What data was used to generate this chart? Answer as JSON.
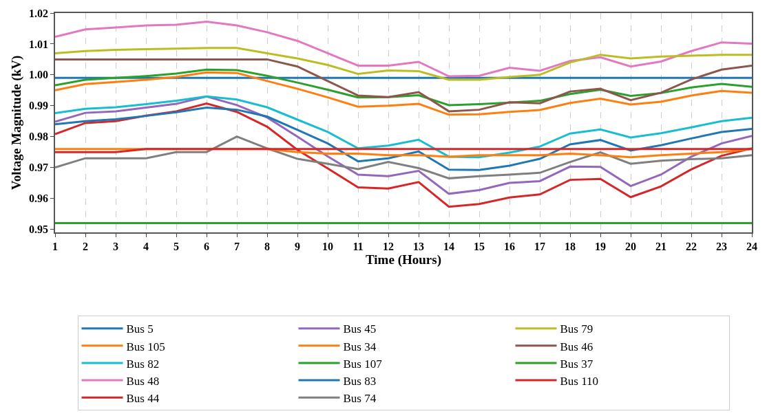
{
  "chart_data": {
    "type": "line",
    "xlabel": "Time (Hours)",
    "ylabel": "Voltage Magnitude (kV)",
    "x": [
      1,
      2,
      3,
      4,
      5,
      6,
      7,
      8,
      9,
      10,
      11,
      12,
      13,
      14,
      15,
      16,
      17,
      18,
      19,
      20,
      21,
      22,
      23,
      24
    ],
    "xlim": [
      1,
      24
    ],
    "xticks": [
      1,
      2,
      3,
      4,
      5,
      6,
      7,
      8,
      9,
      10,
      11,
      12,
      13,
      14,
      15,
      16,
      17,
      18,
      19,
      20,
      21,
      22,
      23,
      24
    ],
    "ylim": [
      0.949,
      1.02
    ],
    "yticks": [
      0.95,
      0.96,
      0.97,
      0.98,
      0.99,
      {
        "value": 1.0,
        "label": "1.00"
      },
      1.01,
      1.02
    ],
    "grid": "x",
    "legend": "bottom",
    "line_style": "solid",
    "marker": "none",
    "series": [
      {
        "name": "Bus 5",
        "color": "#1f77b4",
        "values": [
          0.999,
          0.999,
          0.999,
          0.999,
          0.999,
          0.999,
          0.999,
          0.999,
          0.999,
          0.999,
          0.999,
          0.999,
          0.999,
          0.999,
          0.999,
          0.999,
          0.999,
          0.999,
          0.999,
          0.999,
          0.999,
          0.999,
          0.999,
          0.999
        ]
      },
      {
        "name": "Bus 34",
        "color": "#ff7f0e",
        "values": [
          0.995,
          0.997,
          0.9977,
          0.9984,
          0.9993,
          1.0008,
          1.0006,
          0.998,
          0.9955,
          0.9927,
          0.9897,
          0.99,
          0.9906,
          0.9871,
          0.9872,
          0.988,
          0.9886,
          0.9909,
          0.9923,
          0.9904,
          0.9913,
          0.9933,
          0.9948,
          0.9942
        ]
      },
      {
        "name": "Bus 37",
        "color": "#2ca02c",
        "values": [
          0.9966,
          0.9984,
          0.999,
          0.9996,
          1.0004,
          1.0017,
          1.0015,
          0.9997,
          0.9975,
          0.9952,
          0.9927,
          0.9928,
          0.9934,
          0.9902,
          0.9905,
          0.991,
          0.9916,
          0.9938,
          0.9952,
          0.9932,
          0.9941,
          0.9959,
          0.9971,
          0.9961
        ]
      },
      {
        "name": "Bus 44",
        "color": "#d62728",
        "values": [
          0.9808,
          0.9844,
          0.985,
          0.9868,
          0.9882,
          0.9907,
          0.988,
          0.9832,
          0.9757,
          0.9697,
          0.9636,
          0.9632,
          0.9653,
          0.9573,
          0.9582,
          0.9603,
          0.9613,
          0.966,
          0.9663,
          0.9604,
          0.9639,
          0.9694,
          0.9738,
          0.9762
        ]
      },
      {
        "name": "Bus 45",
        "color": "#9467bd",
        "values": [
          0.9848,
          0.9877,
          0.9882,
          0.9894,
          0.9906,
          0.993,
          0.9902,
          0.9862,
          0.98,
          0.9736,
          0.9677,
          0.9672,
          0.9689,
          0.9615,
          0.9627,
          0.965,
          0.9656,
          0.9703,
          0.9702,
          0.964,
          0.9677,
          0.9735,
          0.9778,
          0.9802
        ]
      },
      {
        "name": "Bus 46",
        "color": "#8c564b",
        "values": [
          1.005,
          1.005,
          1.005,
          1.005,
          1.005,
          1.005,
          1.005,
          1.005,
          1.0027,
          0.998,
          0.9933,
          0.9928,
          0.9944,
          0.9882,
          0.9887,
          0.9911,
          0.9908,
          0.9946,
          0.9955,
          0.9918,
          0.9942,
          0.9985,
          1.0017,
          1.003
        ]
      },
      {
        "name": "Bus 48",
        "color": "#e377c2",
        "values": [
          1.0123,
          1.0147,
          1.0153,
          1.016,
          1.0162,
          1.0172,
          1.016,
          1.0138,
          1.011,
          1.007,
          1.003,
          1.003,
          1.0042,
          0.9995,
          0.9997,
          1.0023,
          1.0013,
          1.0045,
          1.0057,
          1.0027,
          1.0043,
          1.0077,
          1.0105,
          1.0101
        ]
      },
      {
        "name": "Bus 74",
        "color": "#7f7f7f",
        "values": [
          0.97,
          0.973,
          0.973,
          0.973,
          0.975,
          0.975,
          0.98,
          0.9762,
          0.9728,
          0.9712,
          0.9695,
          0.9718,
          0.9698,
          0.9665,
          0.9672,
          0.9677,
          0.9683,
          0.9718,
          0.9749,
          0.9712,
          0.9722,
          0.9727,
          0.973,
          0.974
        ]
      },
      {
        "name": "Bus 79",
        "color": "#bcbd22",
        "values": [
          1.007,
          1.0077,
          1.0081,
          1.0083,
          1.0085,
          1.0087,
          1.0087,
          1.007,
          1.0053,
          1.0032,
          1.0003,
          1.0014,
          1.0012,
          0.9984,
          0.9984,
          0.9993,
          1.0,
          1.004,
          1.0065,
          1.0053,
          1.0059,
          1.0062,
          1.0065,
          1.0065
        ]
      },
      {
        "name": "Bus 82",
        "color": "#17becf",
        "values": [
          0.9876,
          0.989,
          0.9895,
          0.9905,
          0.9916,
          0.993,
          0.992,
          0.9895,
          0.9855,
          0.9815,
          0.9762,
          0.9771,
          0.979,
          0.9735,
          0.9733,
          0.9748,
          0.9768,
          0.981,
          0.9823,
          0.9797,
          0.9811,
          0.983,
          0.985,
          0.9861
        ]
      },
      {
        "name": "Bus 83",
        "color": "#1f77b4",
        "values": [
          0.984,
          0.985,
          0.9856,
          0.9867,
          0.9879,
          0.9894,
          0.9887,
          0.9865,
          0.9822,
          0.9778,
          0.972,
          0.973,
          0.9752,
          0.9693,
          0.9692,
          0.9706,
          0.9728,
          0.9775,
          0.9789,
          0.9755,
          0.9772,
          0.9794,
          0.9815,
          0.9825
        ]
      },
      {
        "name": "Bus 105",
        "color": "#ff7f0e",
        "values": [
          0.976,
          0.976,
          0.976,
          0.976,
          0.976,
          0.976,
          0.976,
          0.976,
          0.975,
          0.9745,
          0.9745,
          0.974,
          0.974,
          0.9735,
          0.974,
          0.974,
          0.974,
          0.9745,
          0.974,
          0.9733,
          0.974,
          0.9745,
          0.975,
          0.976
        ]
      },
      {
        "name": "Bus 107",
        "color": "#2ca02c",
        "values": [
          0.952,
          0.952,
          0.952,
          0.952,
          0.952,
          0.952,
          0.952,
          0.952,
          0.952,
          0.952,
          0.952,
          0.952,
          0.952,
          0.952,
          0.952,
          0.952,
          0.952,
          0.952,
          0.952,
          0.952,
          0.952,
          0.952,
          0.952,
          0.952
        ]
      },
      {
        "name": "Bus 110",
        "color": "#d62728",
        "values": [
          0.975,
          0.975,
          0.975,
          0.976,
          0.976,
          0.976,
          0.976,
          0.976,
          0.976,
          0.976,
          0.976,
          0.976,
          0.976,
          0.976,
          0.976,
          0.976,
          0.976,
          0.976,
          0.976,
          0.976,
          0.976,
          0.976,
          0.976,
          0.976
        ]
      }
    ]
  }
}
